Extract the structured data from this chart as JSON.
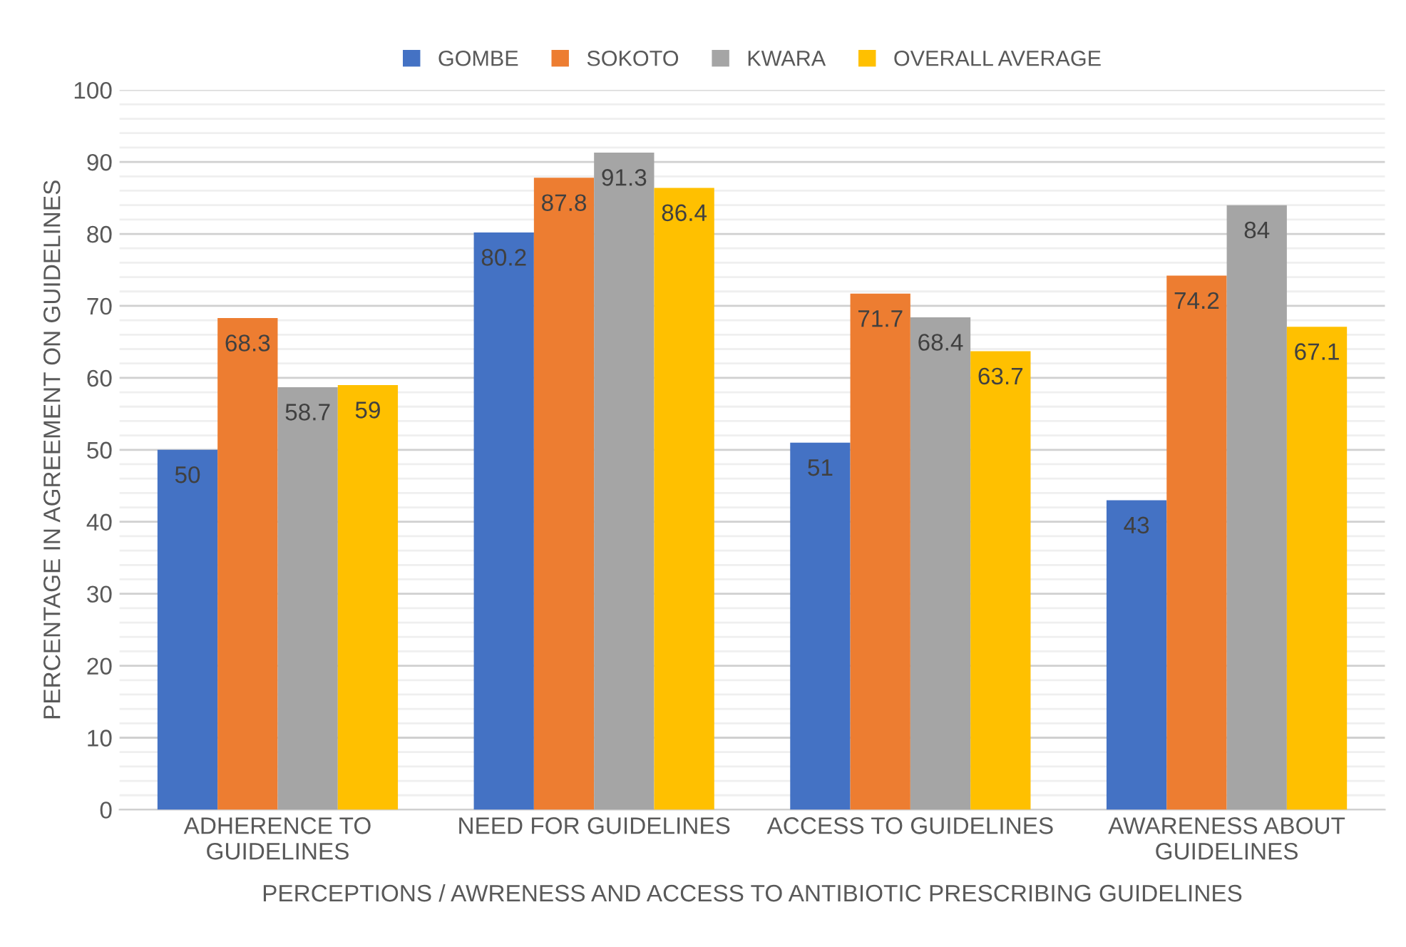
{
  "chart_data": {
    "type": "bar",
    "xlabel": "PERCEPTIONS / AWRENESS AND ACCESS TO ANTIBIOTIC PRESCRIBING GUIDELINES",
    "ylabel": "PERCENTAGE IN AGREEMENT ON GUIDELINES",
    "categories": [
      "ADHERENCE TO\nGUIDELINES",
      "NEED FOR GUIDELINES",
      "ACCESS TO GUIDELINES",
      "AWARENESS ABOUT\nGUIDELINES"
    ],
    "series": [
      {
        "name": "GOMBE",
        "color": "#4472c4",
        "values": [
          50,
          80.2,
          51,
          43
        ]
      },
      {
        "name": "SOKOTO",
        "color": "#ed7d31",
        "values": [
          68.3,
          87.8,
          71.7,
          74.2
        ]
      },
      {
        "name": "KWARA",
        "color": "#a5a5a5",
        "values": [
          58.7,
          91.3,
          68.4,
          84
        ]
      },
      {
        "name": "OVERALL AVERAGE",
        "color": "#ffc000",
        "values": [
          59,
          86.4,
          63.7,
          67.1
        ]
      }
    ],
    "ylim": [
      0,
      100
    ],
    "yticks": [
      0,
      10,
      20,
      30,
      40,
      50,
      60,
      70,
      80,
      90,
      100
    ],
    "grid": "y",
    "legend": "top",
    "data_labels": true
  }
}
